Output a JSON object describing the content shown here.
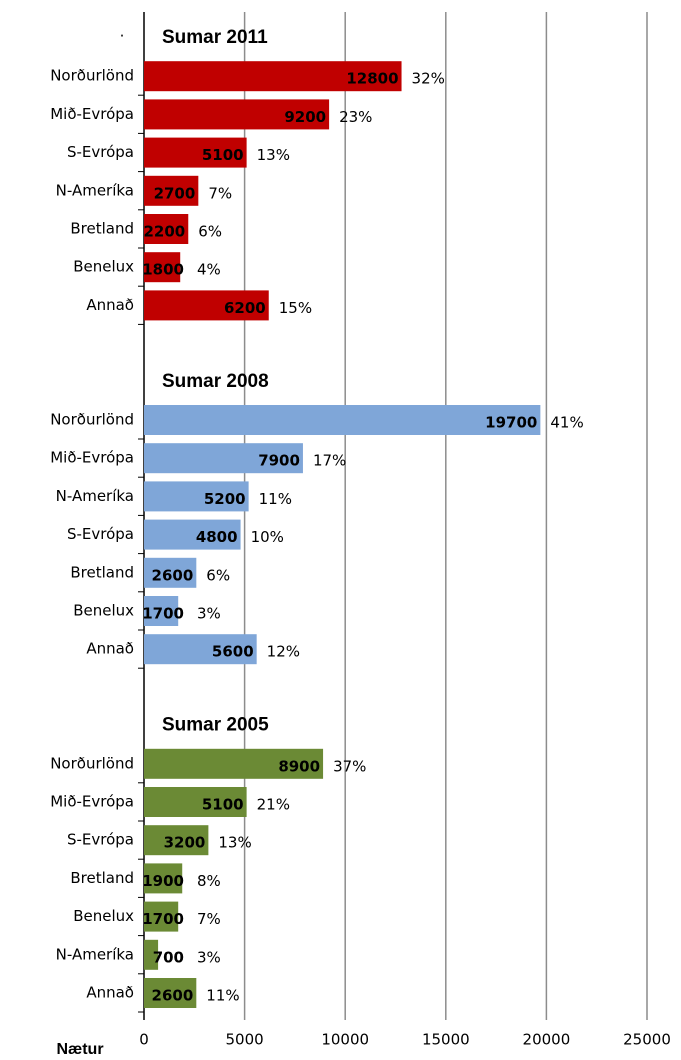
{
  "chart_data": {
    "type": "bar",
    "orientation": "horizontal",
    "top_label": ".",
    "x_label": "Nætur",
    "xlim": [
      0,
      25000
    ],
    "xticks": [
      0,
      5000,
      10000,
      15000,
      20000,
      25000
    ],
    "grid": true,
    "groups": [
      {
        "title": "Sumar 2011",
        "color": "#c00000",
        "categories": [
          "Norðurlönd",
          "Mið-Evrópa",
          "S-Evrópa",
          "N-Ameríka",
          "Bretland",
          "Benelux",
          "Annað"
        ],
        "values": [
          12800,
          9200,
          5100,
          2700,
          2200,
          1800,
          6200
        ],
        "shares": [
          "32%",
          "23%",
          "13%",
          "7%",
          "6%",
          "4%",
          "15%"
        ]
      },
      {
        "title": "Sumar 2008",
        "color": "#7fa6d8",
        "categories": [
          "Norðurlönd",
          "Mið-Evrópa",
          "N-Ameríka",
          "S-Evrópa",
          "Bretland",
          "Benelux",
          "Annað"
        ],
        "values": [
          19700,
          7900,
          5200,
          4800,
          2600,
          1700,
          5600
        ],
        "shares": [
          "41%",
          "17%",
          "11%",
          "10%",
          "6%",
          "3%",
          "12%"
        ]
      },
      {
        "title": "Sumar 2005",
        "color": "#6b8a35",
        "categories": [
          "Norðurlönd",
          "Mið-Evrópa",
          "S-Evrópa",
          "Bretland",
          "Benelux",
          "N-Ameríka",
          "Annað"
        ],
        "values": [
          8900,
          5100,
          3200,
          1900,
          1700,
          700,
          2600
        ],
        "shares": [
          "37%",
          "21%",
          "13%",
          "8%",
          "7%",
          "3%",
          "11%"
        ]
      }
    ]
  }
}
